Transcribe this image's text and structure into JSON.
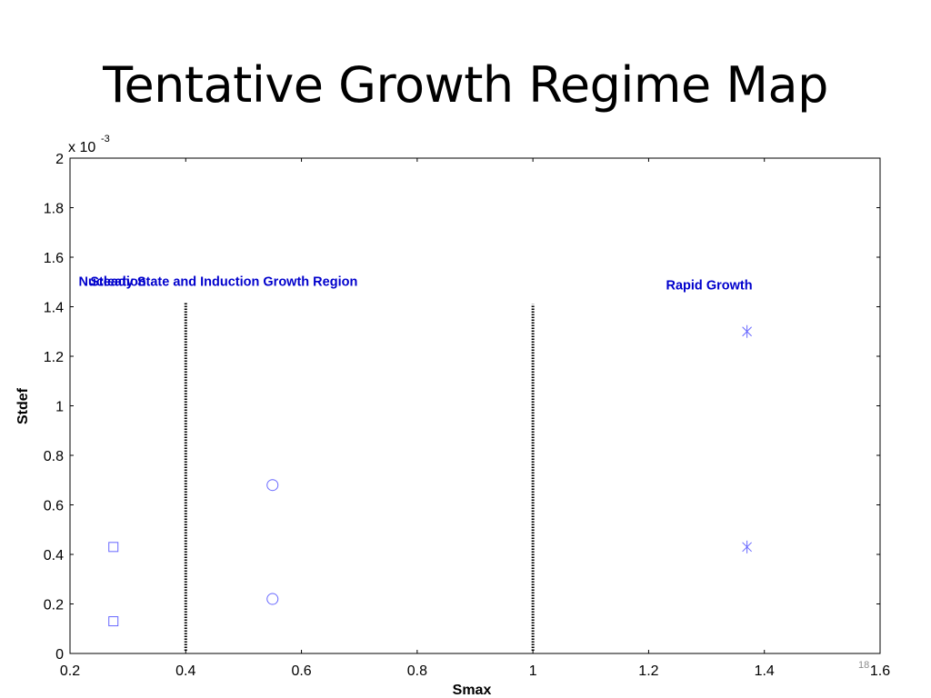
{
  "slide": {
    "title": "Tentative Growth Regime Map",
    "slide_number": "18"
  },
  "chart_data": {
    "type": "scatter",
    "xlabel": "Smax",
    "ylabel": "Stdef",
    "y_multiplier_label": "x 10",
    "y_multiplier_exponent": "-3",
    "xlim": [
      0.2,
      1.6
    ],
    "ylim": [
      0,
      2
    ],
    "x_ticks": [
      0.2,
      0.4,
      0.6,
      0.8,
      1,
      1.2,
      1.4,
      1.6
    ],
    "x_tick_labels": [
      "0.2",
      "0.4",
      "0.6",
      "0.8",
      "1",
      "1.2",
      "1.4",
      "1.6"
    ],
    "y_ticks": [
      0,
      0.2,
      0.4,
      0.6,
      0.8,
      1,
      1.2,
      1.4,
      1.6,
      1.8,
      2
    ],
    "y_tick_labels": [
      "0",
      "0.2",
      "0.4",
      "0.6",
      "0.8",
      "1",
      "1.2",
      "1.4",
      "1.6",
      "1.8",
      "2"
    ],
    "grid": false,
    "series": [
      {
        "marker": "square",
        "color": "#6666ff",
        "points": [
          [
            0.275,
            0.43
          ],
          [
            0.275,
            0.13
          ]
        ]
      },
      {
        "marker": "circle",
        "color": "#6666ff",
        "points": [
          [
            0.55,
            0.68
          ],
          [
            0.55,
            0.22
          ]
        ]
      },
      {
        "marker": "asterisk",
        "color": "#6666ff",
        "points": [
          [
            1.37,
            1.3
          ],
          [
            1.37,
            0.43
          ]
        ]
      }
    ],
    "boundaries": [
      {
        "x": 0.4,
        "y_range": [
          0,
          1.42
        ],
        "style": "dotted",
        "color": "#000000"
      },
      {
        "x": 1.0,
        "y_range": [
          0,
          1.41
        ],
        "style": "dotted",
        "color": "#000000"
      }
    ],
    "annotations": [
      {
        "text": "Nucleation",
        "x": 0.215,
        "y": 1.5,
        "color": "#0000cc"
      },
      {
        "text": "Steady State and Induction Growth Region",
        "x": 0.235,
        "y": 1.5,
        "color": "#0000cc"
      },
      {
        "text": "Rapid Growth",
        "x": 1.23,
        "y": 1.485,
        "color": "#0000cc"
      }
    ]
  }
}
